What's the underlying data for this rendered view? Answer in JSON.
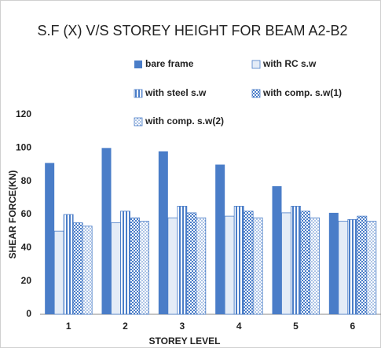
{
  "chart_data": {
    "type": "bar",
    "title": "S.F (X) V/S STOREY HEIGHT FOR BEAM A2-B2",
    "xlabel": "STOREY LEVEL",
    "ylabel": "SHEAR FORCE(KN)",
    "categories": [
      "1",
      "2",
      "3",
      "4",
      "5",
      "6"
    ],
    "series": [
      {
        "name": "bare frame",
        "color": "#4a7dc8",
        "values": [
          91,
          100,
          98,
          90,
          77,
          61
        ]
      },
      {
        "name": "with RC s.w",
        "color": "#4a7dc8",
        "values": [
          50,
          55,
          58,
          59,
          61,
          56
        ]
      },
      {
        "name": "with steel s.w",
        "color": "#4a7dc8",
        "values": [
          60,
          62,
          65,
          65,
          65,
          57
        ]
      },
      {
        "name": "with comp. s.w(1)",
        "color": "#4a7dc8",
        "values": [
          55,
          58,
          61,
          62,
          62,
          59
        ]
      },
      {
        "name": "with comp. s.w(2)",
        "color": "#4a7dc8",
        "values": [
          53,
          56,
          58,
          58,
          58,
          56
        ]
      }
    ],
    "ylim": [
      0,
      120
    ],
    "yticks": [
      0,
      20,
      40,
      60,
      80,
      100,
      120
    ],
    "grid": false
  }
}
